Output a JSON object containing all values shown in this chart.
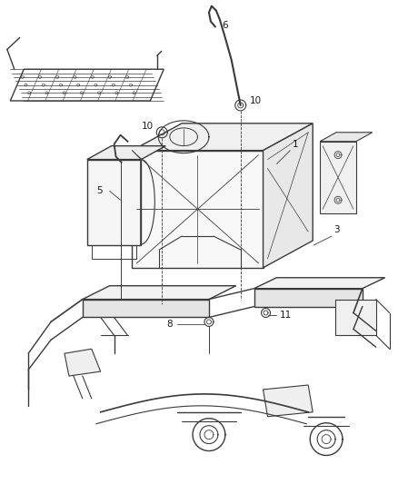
{
  "bg_color": "#ffffff",
  "line_color": "#3a3a3a",
  "label_color": "#1a1a1a",
  "fig_width": 4.38,
  "fig_height": 5.33,
  "dpi": 100
}
